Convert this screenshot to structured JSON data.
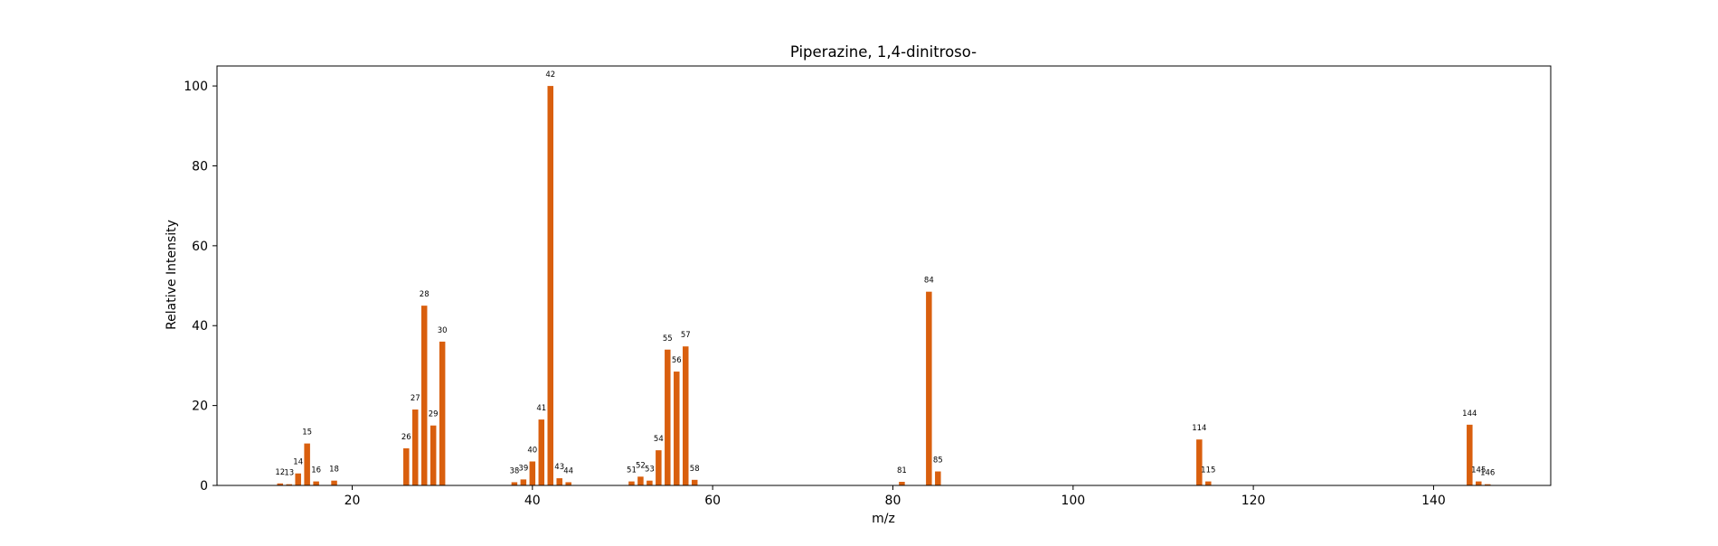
{
  "chart_data": {
    "type": "bar",
    "title": "Piperazine, 1,4-dinitroso-",
    "xlabel": "m/z",
    "ylabel": "Relative Intensity",
    "xlim": [
      5,
      153
    ],
    "ylim": [
      0,
      105
    ],
    "xticks": [
      20,
      40,
      60,
      80,
      100,
      120,
      140
    ],
    "yticks": [
      0,
      20,
      40,
      60,
      80,
      100
    ],
    "grid": false,
    "legend": "none",
    "bar_color": "#d95f0e",
    "peaks": [
      {
        "mz": 12,
        "intensity": 0.5,
        "label": "12"
      },
      {
        "mz": 13,
        "intensity": 0.3,
        "label": "13"
      },
      {
        "mz": 14,
        "intensity": 3.0,
        "label": "14"
      },
      {
        "mz": 15,
        "intensity": 10.5,
        "label": "15"
      },
      {
        "mz": 16,
        "intensity": 1.0,
        "label": "16"
      },
      {
        "mz": 18,
        "intensity": 1.2,
        "label": "18"
      },
      {
        "mz": 26,
        "intensity": 9.3,
        "label": "26"
      },
      {
        "mz": 27,
        "intensity": 19.0,
        "label": "27"
      },
      {
        "mz": 28,
        "intensity": 45.0,
        "label": "28"
      },
      {
        "mz": 29,
        "intensity": 15.0,
        "label": "29"
      },
      {
        "mz": 30,
        "intensity": 36.0,
        "label": "30"
      },
      {
        "mz": 38,
        "intensity": 0.8,
        "label": "38"
      },
      {
        "mz": 39,
        "intensity": 1.5,
        "label": "39"
      },
      {
        "mz": 40,
        "intensity": 6.0,
        "label": "40"
      },
      {
        "mz": 41,
        "intensity": 16.5,
        "label": "41"
      },
      {
        "mz": 42,
        "intensity": 100.0,
        "label": "42"
      },
      {
        "mz": 43,
        "intensity": 1.8,
        "label": "43"
      },
      {
        "mz": 44,
        "intensity": 0.8,
        "label": "44"
      },
      {
        "mz": 51,
        "intensity": 1.0,
        "label": "51"
      },
      {
        "mz": 52,
        "intensity": 2.2,
        "label": "52"
      },
      {
        "mz": 53,
        "intensity": 1.2,
        "label": "53"
      },
      {
        "mz": 54,
        "intensity": 8.8,
        "label": "54"
      },
      {
        "mz": 55,
        "intensity": 34.0,
        "label": "55"
      },
      {
        "mz": 56,
        "intensity": 28.5,
        "label": "56"
      },
      {
        "mz": 57,
        "intensity": 34.8,
        "label": "57"
      },
      {
        "mz": 58,
        "intensity": 1.4,
        "label": "58"
      },
      {
        "mz": 81,
        "intensity": 0.9,
        "label": "81"
      },
      {
        "mz": 84,
        "intensity": 48.5,
        "label": "84"
      },
      {
        "mz": 85,
        "intensity": 3.5,
        "label": "85"
      },
      {
        "mz": 114,
        "intensity": 11.5,
        "label": "114"
      },
      {
        "mz": 115,
        "intensity": 1.0,
        "label": "115"
      },
      {
        "mz": 144,
        "intensity": 15.2,
        "label": "144"
      },
      {
        "mz": 145,
        "intensity": 1.0,
        "label": "145"
      },
      {
        "mz": 146,
        "intensity": 0.3,
        "label": "146"
      }
    ]
  }
}
